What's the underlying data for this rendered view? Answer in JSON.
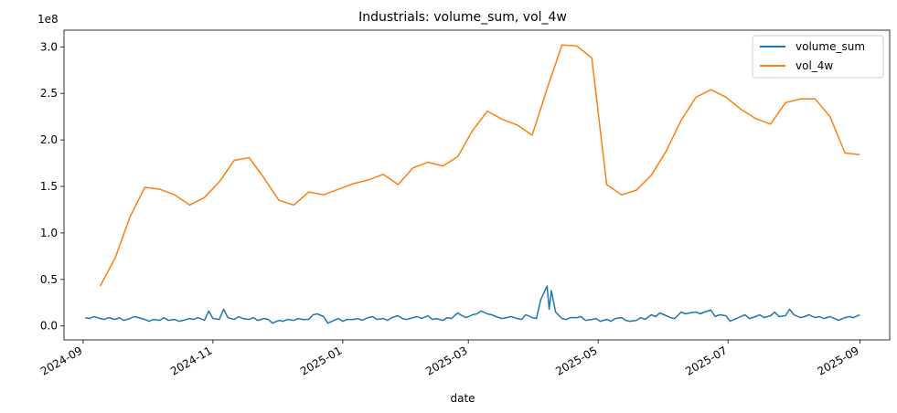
{
  "chart_data": {
    "type": "line",
    "title": "Industrials: volume_sum, vol_4w",
    "xlabel": "date",
    "ylabel": "",
    "y_offset_label": "1e8",
    "xlim": [
      "2024-08-23",
      "2025-09-15"
    ],
    "ylim": [
      -0.15,
      3.18
    ],
    "x_ticks": [
      {
        "date": "2024-09-01",
        "label": "2024-09"
      },
      {
        "date": "2024-11-01",
        "label": "2024-11"
      },
      {
        "date": "2025-01-01",
        "label": "2025-01"
      },
      {
        "date": "2025-03-01",
        "label": "2025-03"
      },
      {
        "date": "2025-05-01",
        "label": "2025-05"
      },
      {
        "date": "2025-07-01",
        "label": "2025-07"
      },
      {
        "date": "2025-09-01",
        "label": "2025-09"
      }
    ],
    "y_ticks": [
      {
        "value": 0.0,
        "label": "0.0"
      },
      {
        "value": 0.5,
        "label": "0.5"
      },
      {
        "value": 1.0,
        "label": "1.0"
      },
      {
        "value": 1.5,
        "label": "1.5"
      },
      {
        "value": 2.0,
        "label": "2.0"
      },
      {
        "value": 2.5,
        "label": "2.5"
      },
      {
        "value": 3.0,
        "label": "3.0"
      }
    ],
    "grid": false,
    "legend_position": "top-right",
    "series": [
      {
        "name": "volume_sum",
        "color": "#1f77b4",
        "points": [
          [
            "2024-09-02",
            0.09
          ],
          [
            "2024-09-04",
            0.08
          ],
          [
            "2024-09-06",
            0.1
          ],
          [
            "2024-09-09",
            0.08
          ],
          [
            "2024-09-11",
            0.07
          ],
          [
            "2024-09-13",
            0.09
          ],
          [
            "2024-09-16",
            0.07
          ],
          [
            "2024-09-18",
            0.09
          ],
          [
            "2024-09-20",
            0.06
          ],
          [
            "2024-09-23",
            0.08
          ],
          [
            "2024-09-25",
            0.1
          ],
          [
            "2024-09-27",
            0.09
          ],
          [
            "2024-09-30",
            0.07
          ],
          [
            "2024-10-02",
            0.05
          ],
          [
            "2024-10-04",
            0.07
          ],
          [
            "2024-10-07",
            0.06
          ],
          [
            "2024-10-09",
            0.09
          ],
          [
            "2024-10-11",
            0.06
          ],
          [
            "2024-10-14",
            0.07
          ],
          [
            "2024-10-16",
            0.05
          ],
          [
            "2024-10-18",
            0.06
          ],
          [
            "2024-10-21",
            0.08
          ],
          [
            "2024-10-23",
            0.07
          ],
          [
            "2024-10-25",
            0.09
          ],
          [
            "2024-10-28",
            0.06
          ],
          [
            "2024-10-30",
            0.16
          ],
          [
            "2024-11-01",
            0.08
          ],
          [
            "2024-11-04",
            0.07
          ],
          [
            "2024-11-06",
            0.18
          ],
          [
            "2024-11-08",
            0.09
          ],
          [
            "2024-11-11",
            0.07
          ],
          [
            "2024-11-13",
            0.1
          ],
          [
            "2024-11-15",
            0.08
          ],
          [
            "2024-11-18",
            0.07
          ],
          [
            "2024-11-20",
            0.09
          ],
          [
            "2024-11-22",
            0.06
          ],
          [
            "2024-11-25",
            0.08
          ],
          [
            "2024-11-27",
            0.07
          ],
          [
            "2024-11-29",
            0.03
          ],
          [
            "2024-12-02",
            0.06
          ],
          [
            "2024-12-04",
            0.05
          ],
          [
            "2024-12-06",
            0.07
          ],
          [
            "2024-12-09",
            0.06
          ],
          [
            "2024-12-11",
            0.08
          ],
          [
            "2024-12-13",
            0.07
          ],
          [
            "2024-12-16",
            0.07
          ],
          [
            "2024-12-18",
            0.12
          ],
          [
            "2024-12-20",
            0.13
          ],
          [
            "2024-12-23",
            0.1
          ],
          [
            "2024-12-25",
            0.03
          ],
          [
            "2024-12-27",
            0.05
          ],
          [
            "2024-12-30",
            0.08
          ],
          [
            "2025-01-01",
            0.05
          ],
          [
            "2025-01-03",
            0.07
          ],
          [
            "2025-01-06",
            0.07
          ],
          [
            "2025-01-08",
            0.08
          ],
          [
            "2025-01-10",
            0.06
          ],
          [
            "2025-01-13",
            0.09
          ],
          [
            "2025-01-15",
            0.1
          ],
          [
            "2025-01-17",
            0.07
          ],
          [
            "2025-01-20",
            0.08
          ],
          [
            "2025-01-22",
            0.06
          ],
          [
            "2025-01-24",
            0.09
          ],
          [
            "2025-01-27",
            0.11
          ],
          [
            "2025-01-29",
            0.08
          ],
          [
            "2025-01-31",
            0.07
          ],
          [
            "2025-02-03",
            0.09
          ],
          [
            "2025-02-05",
            0.1
          ],
          [
            "2025-02-07",
            0.08
          ],
          [
            "2025-02-10",
            0.11
          ],
          [
            "2025-02-12",
            0.07
          ],
          [
            "2025-02-14",
            0.08
          ],
          [
            "2025-02-17",
            0.06
          ],
          [
            "2025-02-19",
            0.09
          ],
          [
            "2025-02-21",
            0.08
          ],
          [
            "2025-02-24",
            0.14
          ],
          [
            "2025-02-26",
            0.11
          ],
          [
            "2025-02-28",
            0.09
          ],
          [
            "2025-03-03",
            0.12
          ],
          [
            "2025-03-05",
            0.13
          ],
          [
            "2025-03-07",
            0.16
          ],
          [
            "2025-03-10",
            0.13
          ],
          [
            "2025-03-12",
            0.12
          ],
          [
            "2025-03-14",
            0.1
          ],
          [
            "2025-03-17",
            0.08
          ],
          [
            "2025-03-19",
            0.09
          ],
          [
            "2025-03-21",
            0.1
          ],
          [
            "2025-03-24",
            0.08
          ],
          [
            "2025-03-26",
            0.07
          ],
          [
            "2025-03-28",
            0.12
          ],
          [
            "2025-03-31",
            0.09
          ],
          [
            "2025-04-02",
            0.08
          ],
          [
            "2025-04-04",
            0.28
          ],
          [
            "2025-04-07",
            0.43
          ],
          [
            "2025-04-08",
            0.18
          ],
          [
            "2025-04-09",
            0.38
          ],
          [
            "2025-04-11",
            0.15
          ],
          [
            "2025-04-14",
            0.08
          ],
          [
            "2025-04-16",
            0.07
          ],
          [
            "2025-04-18",
            0.09
          ],
          [
            "2025-04-21",
            0.09
          ],
          [
            "2025-04-23",
            0.1
          ],
          [
            "2025-04-25",
            0.06
          ],
          [
            "2025-04-28",
            0.07
          ],
          [
            "2025-04-30",
            0.08
          ],
          [
            "2025-05-02",
            0.05
          ],
          [
            "2025-05-05",
            0.07
          ],
          [
            "2025-05-07",
            0.05
          ],
          [
            "2025-05-09",
            0.08
          ],
          [
            "2025-05-12",
            0.09
          ],
          [
            "2025-05-14",
            0.06
          ],
          [
            "2025-05-16",
            0.05
          ],
          [
            "2025-05-19",
            0.06
          ],
          [
            "2025-05-21",
            0.09
          ],
          [
            "2025-05-23",
            0.07
          ],
          [
            "2025-05-26",
            0.12
          ],
          [
            "2025-05-28",
            0.1
          ],
          [
            "2025-05-30",
            0.14
          ],
          [
            "2025-06-02",
            0.11
          ],
          [
            "2025-06-04",
            0.09
          ],
          [
            "2025-06-06",
            0.08
          ],
          [
            "2025-06-09",
            0.15
          ],
          [
            "2025-06-11",
            0.13
          ],
          [
            "2025-06-13",
            0.14
          ],
          [
            "2025-06-16",
            0.15
          ],
          [
            "2025-06-18",
            0.13
          ],
          [
            "2025-06-20",
            0.15
          ],
          [
            "2025-06-23",
            0.17
          ],
          [
            "2025-06-25",
            0.1
          ],
          [
            "2025-06-27",
            0.12
          ],
          [
            "2025-06-30",
            0.11
          ],
          [
            "2025-07-02",
            0.05
          ],
          [
            "2025-07-04",
            0.07
          ],
          [
            "2025-07-07",
            0.1
          ],
          [
            "2025-07-09",
            0.12
          ],
          [
            "2025-07-11",
            0.08
          ],
          [
            "2025-07-14",
            0.1
          ],
          [
            "2025-07-16",
            0.12
          ],
          [
            "2025-07-18",
            0.09
          ],
          [
            "2025-07-21",
            0.11
          ],
          [
            "2025-07-23",
            0.15
          ],
          [
            "2025-07-25",
            0.1
          ],
          [
            "2025-07-28",
            0.11
          ],
          [
            "2025-07-30",
            0.18
          ],
          [
            "2025-08-01",
            0.12
          ],
          [
            "2025-08-04",
            0.09
          ],
          [
            "2025-08-06",
            0.1
          ],
          [
            "2025-08-08",
            0.12
          ],
          [
            "2025-08-11",
            0.09
          ],
          [
            "2025-08-13",
            0.1
          ],
          [
            "2025-08-15",
            0.08
          ],
          [
            "2025-08-18",
            0.1
          ],
          [
            "2025-08-20",
            0.08
          ],
          [
            "2025-08-22",
            0.06
          ],
          [
            "2025-08-25",
            0.09
          ],
          [
            "2025-08-27",
            0.1
          ],
          [
            "2025-08-29",
            0.09
          ],
          [
            "2025-09-01",
            0.12
          ]
        ]
      },
      {
        "name": "vol_4w",
        "color": "#ff7f0e",
        "points": [
          [
            "2024-09-09",
            0.43
          ],
          [
            "2024-09-16",
            0.73
          ],
          [
            "2024-09-23",
            1.17
          ],
          [
            "2024-09-30",
            1.49
          ],
          [
            "2024-10-07",
            1.47
          ],
          [
            "2024-10-14",
            1.41
          ],
          [
            "2024-10-21",
            1.3
          ],
          [
            "2024-10-28",
            1.38
          ],
          [
            "2024-11-04",
            1.55
          ],
          [
            "2024-11-11",
            1.78
          ],
          [
            "2024-11-18",
            1.81
          ],
          [
            "2024-11-25",
            1.59
          ],
          [
            "2024-12-02",
            1.35
          ],
          [
            "2024-12-09",
            1.3
          ],
          [
            "2024-12-16",
            1.44
          ],
          [
            "2024-12-23",
            1.41
          ],
          [
            "2024-12-30",
            1.47
          ],
          [
            "2025-01-06",
            1.53
          ],
          [
            "2025-01-13",
            1.57
          ],
          [
            "2025-01-20",
            1.63
          ],
          [
            "2025-01-27",
            1.52
          ],
          [
            "2025-02-03",
            1.7
          ],
          [
            "2025-02-10",
            1.76
          ],
          [
            "2025-02-17",
            1.72
          ],
          [
            "2025-02-24",
            1.82
          ],
          [
            "2025-03-03",
            2.1
          ],
          [
            "2025-03-10",
            2.31
          ],
          [
            "2025-03-17",
            2.22
          ],
          [
            "2025-03-24",
            2.16
          ],
          [
            "2025-03-31",
            2.05
          ],
          [
            "2025-04-07",
            2.55
          ],
          [
            "2025-04-14",
            3.02
          ],
          [
            "2025-04-21",
            3.01
          ],
          [
            "2025-04-28",
            2.88
          ],
          [
            "2025-05-05",
            1.52
          ],
          [
            "2025-05-12",
            1.41
          ],
          [
            "2025-05-19",
            1.46
          ],
          [
            "2025-05-26",
            1.62
          ],
          [
            "2025-06-02",
            1.88
          ],
          [
            "2025-06-09",
            2.21
          ],
          [
            "2025-06-16",
            2.46
          ],
          [
            "2025-06-23",
            2.54
          ],
          [
            "2025-06-30",
            2.46
          ],
          [
            "2025-07-07",
            2.33
          ],
          [
            "2025-07-14",
            2.23
          ],
          [
            "2025-07-21",
            2.17
          ],
          [
            "2025-07-28",
            2.4
          ],
          [
            "2025-08-04",
            2.44
          ],
          [
            "2025-08-11",
            2.44
          ],
          [
            "2025-08-18",
            2.25
          ],
          [
            "2025-08-25",
            1.86
          ],
          [
            "2025-09-01",
            1.84
          ]
        ]
      }
    ]
  }
}
